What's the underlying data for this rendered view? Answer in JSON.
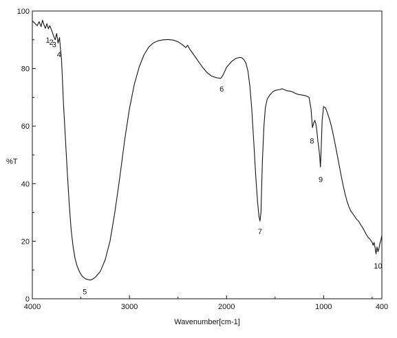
{
  "chart_data": {
    "type": "line",
    "title": "",
    "xlabel": "Wavenumber[cm-1]",
    "ylabel": "%T",
    "xlim": [
      4000,
      400
    ],
    "ylim": [
      0,
      100
    ],
    "x_ticks": [
      "4000",
      "3000",
      "2000",
      "1000",
      "400"
    ],
    "x_tick_values": [
      4000,
      3000,
      2000,
      1000,
      400
    ],
    "y_ticks": [
      "0",
      "20",
      "40",
      "60",
      "80",
      "100"
    ],
    "y_tick_values": [
      0,
      20,
      40,
      60,
      80,
      100
    ],
    "grid": false,
    "legend": "none",
    "line_color": "#111111",
    "series": [
      {
        "x": [
          4000,
          3975,
          3950,
          3930,
          3910,
          3895,
          3880,
          3865,
          3850,
          3835,
          3820,
          3800,
          3780,
          3765,
          3750,
          3735,
          3720,
          3710,
          3700,
          3690,
          3680,
          3660,
          3640,
          3620,
          3600,
          3580,
          3560,
          3540,
          3520,
          3500,
          3480,
          3450,
          3420,
          3400,
          3380,
          3350,
          3300,
          3250,
          3200,
          3150,
          3100,
          3050,
          3000,
          2950,
          2900,
          2850,
          2800,
          2750,
          2700,
          2650,
          2600,
          2550,
          2500,
          2450,
          2420,
          2400,
          2380,
          2350,
          2300,
          2250,
          2200,
          2150,
          2100,
          2060,
          2040,
          2020,
          2000,
          1950,
          1900,
          1860,
          1840,
          1820,
          1800,
          1780,
          1760,
          1740,
          1720,
          1700,
          1680,
          1665,
          1655,
          1645,
          1640,
          1630,
          1615,
          1600,
          1580,
          1550,
          1520,
          1500,
          1470,
          1450,
          1430,
          1400,
          1380,
          1350,
          1320,
          1300,
          1260,
          1220,
          1180,
          1150,
          1130,
          1115,
          1100,
          1090,
          1080,
          1070,
          1060,
          1050,
          1040,
          1033,
          1025,
          1015,
          1000,
          980,
          960,
          940,
          920,
          900,
          880,
          860,
          840,
          820,
          800,
          780,
          760,
          740,
          720,
          700,
          680,
          660,
          640,
          620,
          600,
          580,
          560,
          540,
          520,
          500,
          490,
          480,
          470,
          460,
          450,
          440,
          430,
          420,
          410,
          400
        ],
        "y": [
          96.5,
          95.8,
          94.9,
          96.3,
          94.6,
          96.8,
          95.2,
          94.0,
          95.6,
          93.8,
          94.9,
          93.2,
          91.3,
          90.0,
          92.2,
          88.9,
          90.8,
          86.9,
          83.5,
          76.5,
          68.0,
          56.0,
          44.0,
          33.0,
          24.0,
          18.0,
          14.0,
          11.5,
          9.8,
          8.5,
          7.6,
          6.9,
          6.6,
          6.5,
          6.8,
          7.5,
          9.5,
          13.5,
          20.0,
          30.0,
          42.0,
          55.0,
          66.0,
          74.5,
          80.5,
          84.8,
          87.5,
          89.0,
          89.7,
          90.0,
          90.1,
          89.9,
          89.3,
          88.2,
          87.3,
          88.1,
          86.8,
          85.4,
          83.0,
          80.6,
          78.6,
          77.3,
          76.8,
          76.6,
          77.5,
          78.9,
          80.4,
          82.4,
          83.6,
          83.9,
          83.7,
          83.1,
          81.9,
          79.2,
          74.0,
          66.0,
          55.0,
          43.0,
          33.5,
          28.5,
          27.0,
          30.0,
          36.0,
          48.0,
          60.0,
          66.5,
          69.5,
          71.0,
          72.0,
          72.4,
          72.6,
          72.7,
          73.0,
          72.6,
          72.3,
          72.2,
          71.9,
          71.5,
          71.0,
          70.8,
          70.5,
          70.0,
          66.0,
          59.5,
          61.3,
          62.0,
          60.8,
          58.5,
          55.0,
          52.5,
          49.5,
          45.8,
          52.0,
          62.0,
          66.8,
          66.3,
          64.5,
          62.5,
          60.0,
          57.0,
          53.5,
          50.0,
          46.5,
          43.0,
          39.5,
          36.5,
          34.0,
          32.0,
          30.5,
          29.6,
          28.6,
          27.6,
          27.0,
          25.8,
          24.8,
          23.6,
          22.3,
          21.3,
          20.6,
          19.6,
          18.6,
          19.6,
          17.8,
          15.6,
          18.0,
          16.4,
          17.5,
          19.3,
          20.3,
          22.0
        ]
      }
    ],
    "annotations": [
      {
        "text": "1",
        "x": 3840,
        "y": 89.0
      },
      {
        "text": "2",
        "x": 3805,
        "y": 88.3
      },
      {
        "text": "3",
        "x": 3775,
        "y": 87.5
      },
      {
        "text": "4",
        "x": 3725,
        "y": 84.0
      },
      {
        "text": "5",
        "x": 3460,
        "y": 1.5
      },
      {
        "text": "6",
        "x": 2050,
        "y": 72.0
      },
      {
        "text": "7",
        "x": 1655,
        "y": 22.5
      },
      {
        "text": "8",
        "x": 1120,
        "y": 54.0
      },
      {
        "text": "9",
        "x": 1030,
        "y": 40.5
      },
      {
        "text": "10",
        "x": 440,
        "y": 10.5
      }
    ]
  }
}
